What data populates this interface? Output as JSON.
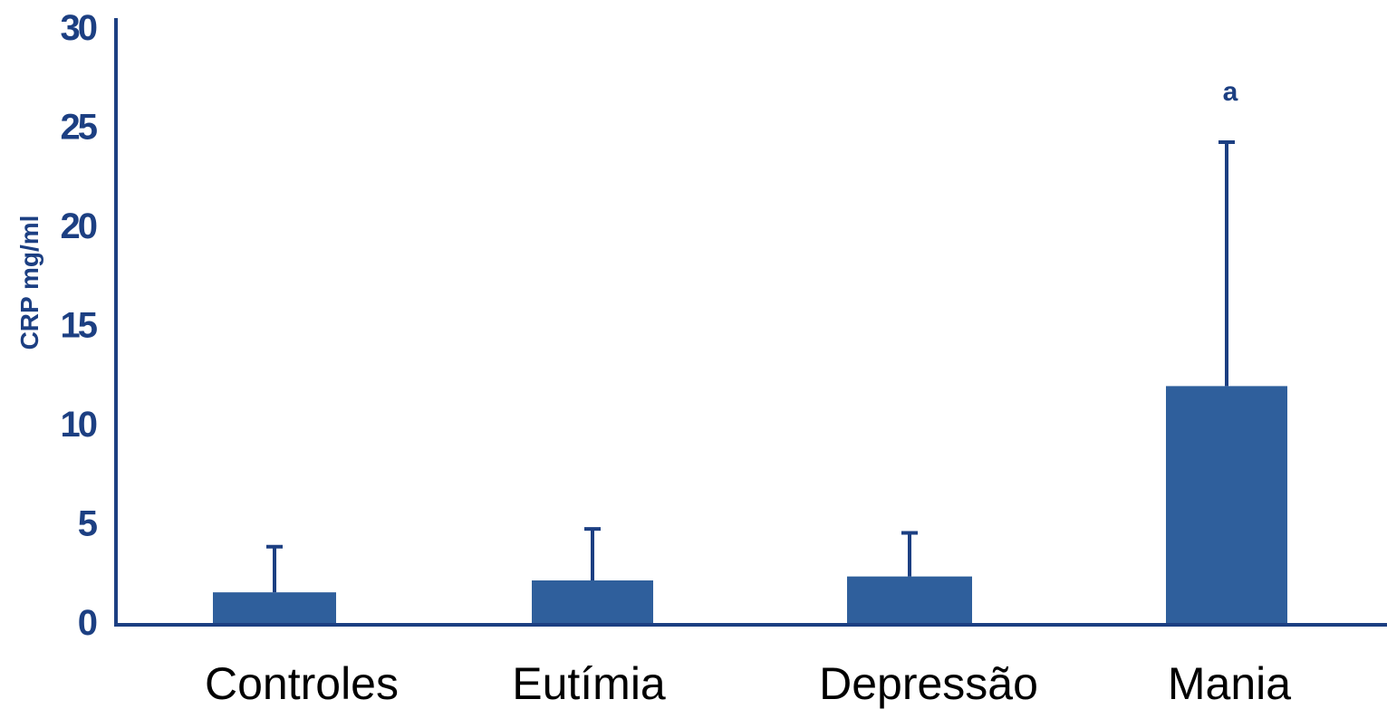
{
  "chart_data": {
    "type": "bar",
    "title": "",
    "xlabel": "",
    "ylabel": "CRP mg/ml",
    "ylim": [
      0,
      30
    ],
    "yticks": [
      0,
      5,
      10,
      15,
      20,
      25,
      30
    ],
    "grid": false,
    "categories": [
      "Controles",
      "Eutímia",
      "Depressão",
      "Mania"
    ],
    "values": [
      1.5,
      2.1,
      2.3,
      11.9
    ],
    "error_upper": [
      3.8,
      4.7,
      4.5,
      24.2
    ],
    "annotations": [
      {
        "category": "Mania",
        "text": "a"
      }
    ],
    "colors": {
      "bar": "#2f5f9c",
      "axis": "#1c3f82",
      "tick_text": "#1c3f82",
      "category_text": "#000000"
    }
  }
}
